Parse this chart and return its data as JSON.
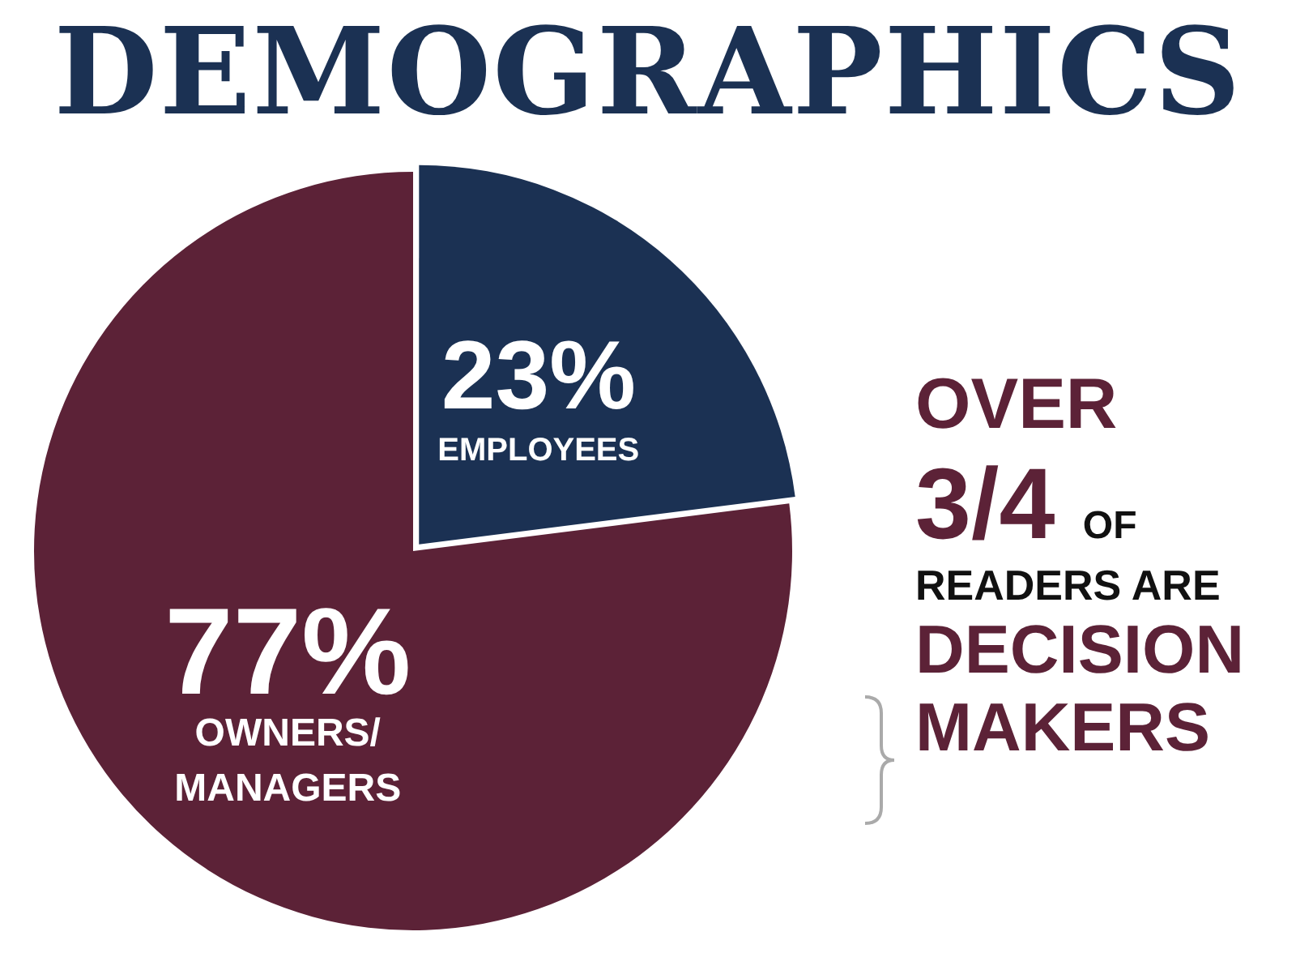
{
  "chart_data": {
    "type": "pie",
    "title": "DEMOGRAPHICS",
    "categories": [
      "EMPLOYEES",
      "OWNERS/MANAGERS"
    ],
    "values": [
      23,
      77
    ],
    "value_labels": [
      "23%",
      "77%"
    ],
    "colors": [
      "#1b3153",
      "#5c2237"
    ],
    "legend": false,
    "annotations": [
      "OVER 3/4 OF READERS ARE DECISION MAKERS"
    ]
  }
}
